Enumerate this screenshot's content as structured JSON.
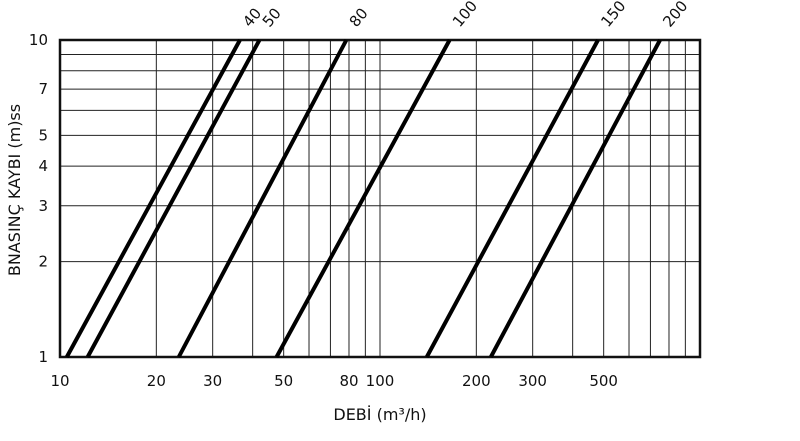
{
  "chart_data": {
    "type": "line",
    "title": "",
    "xlabel": "DEBİ  (m³/h)",
    "ylabel": "BNASINÇ KAYBI  (m)ss",
    "x_scale": "log",
    "y_scale": "log",
    "xlim": [
      10,
      1000
    ],
    "ylim": [
      1,
      10
    ],
    "grid": true,
    "legend": "series labels at top end of each line",
    "x_ticks": [
      "10",
      "20",
      "30",
      "50",
      "80",
      "100",
      "200",
      "300",
      "500"
    ],
    "x_tick_values": [
      10,
      20,
      30,
      50,
      80,
      100,
      200,
      300,
      500
    ],
    "y_ticks": [
      "1",
      "2",
      "3",
      "4",
      "5",
      "7",
      "10"
    ],
    "y_tick_values": [
      1,
      2,
      3,
      4,
      5,
      7,
      10
    ],
    "x_gridlines": [
      20,
      30,
      40,
      50,
      60,
      70,
      80,
      90,
      100,
      200,
      300,
      400,
      500,
      600,
      700,
      800,
      900
    ],
    "y_gridlines": [
      2,
      3,
      4,
      5,
      6,
      7,
      8,
      9
    ],
    "series": [
      {
        "name": "40",
        "points": [
          [
            10.5,
            1
          ],
          [
            36.5,
            10
          ]
        ]
      },
      {
        "name": "50",
        "points": [
          [
            12.2,
            1
          ],
          [
            42.0,
            10
          ]
        ]
      },
      {
        "name": "80",
        "points": [
          [
            23.5,
            1
          ],
          [
            78.5,
            10
          ]
        ]
      },
      {
        "name": "100",
        "points": [
          [
            47.5,
            1
          ],
          [
            165,
            10
          ]
        ]
      },
      {
        "name": "150",
        "points": [
          [
            140,
            1
          ],
          [
            480,
            10
          ]
        ]
      },
      {
        "name": "200",
        "points": [
          [
            222,
            1
          ],
          [
            750,
            10
          ]
        ]
      }
    ]
  }
}
